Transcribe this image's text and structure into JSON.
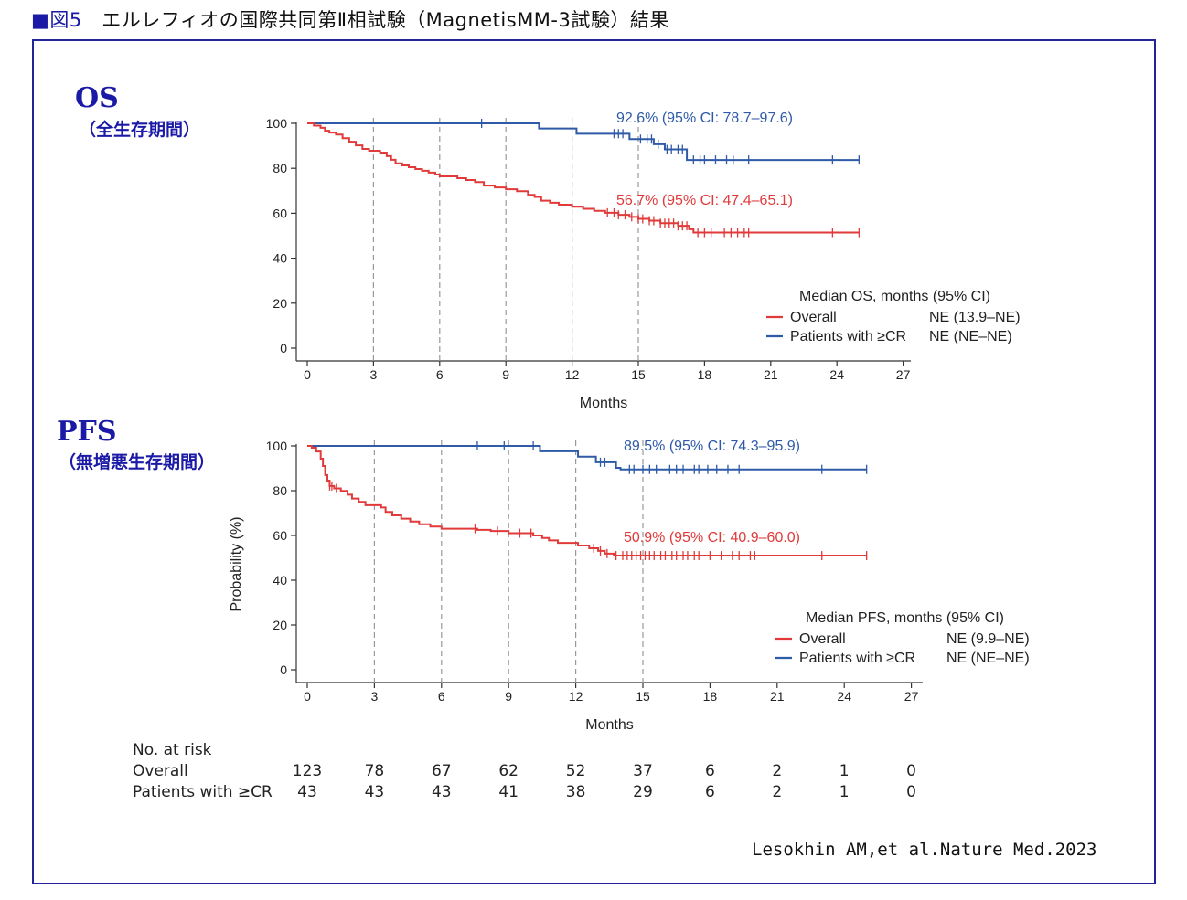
{
  "figure": {
    "square": "■",
    "label": "図5",
    "title": "エルレフィオの国際共同第Ⅱ相試験（MagnetisMM-3試験）結果",
    "citation": "Lesokhin AM,et al.Nature Med.2023",
    "border_color": "#23239a",
    "heading_color": "#1a1aa6"
  },
  "sections": {
    "os": {
      "title": "OS",
      "subtitle": "（全生存期間）"
    },
    "pfs": {
      "title": "PFS",
      "subtitle": "（無増悪生存期間）"
    }
  },
  "chart_data": [
    {
      "id": "os",
      "type": "line",
      "xlabel": "Months",
      "ylabel": "",
      "xlim": [
        0,
        27
      ],
      "ylim": [
        0,
        100
      ],
      "xticks": [
        0,
        3,
        6,
        9,
        12,
        15,
        18,
        21,
        24,
        27
      ],
      "yticks": [
        0,
        20,
        40,
        60,
        80,
        100
      ],
      "dashed_vlines": [
        3,
        6,
        9,
        12,
        15
      ],
      "legend": {
        "title": "Median OS, months (95% CI)",
        "placement": "lower-right",
        "entries": [
          {
            "name": "Overall",
            "value": "NE (13.9–NE)",
            "color": "#e03a3a"
          },
          {
            "name": "Patients with ≥CR",
            "value": "NE (NE–NE)",
            "color": "#2f5aa8"
          }
        ]
      },
      "series": [
        {
          "name": "Patients with ≥CR",
          "color": "#2f5aa8",
          "annotation": "92.6% (95% CI: 78.7–97.6)",
          "steps": [
            [
              0,
              100
            ],
            [
              10.5,
              97.7
            ],
            [
              12.2,
              95.4
            ],
            [
              14.6,
              93.0
            ],
            [
              15.7,
              90.7
            ],
            [
              16.2,
              88.4
            ],
            [
              17.2,
              83.7
            ],
            [
              25,
              83.7
            ]
          ],
          "censor": [
            7.9,
            13.9,
            14.1,
            14.3,
            15.1,
            15.4,
            15.6,
            15.9,
            16.3,
            16.5,
            16.8,
            17.0,
            17.5,
            17.8,
            18.0,
            18.5,
            19.0,
            19.3,
            20.0,
            23.8,
            25.0
          ]
        },
        {
          "name": "Overall",
          "color": "#e03a3a",
          "annotation": "56.7% (95% CI: 47.4–65.1)",
          "steps": [
            [
              0,
              100
            ],
            [
              0.3,
              99
            ],
            [
              0.6,
              98
            ],
            [
              0.8,
              96.7
            ],
            [
              1.0,
              95.9
            ],
            [
              1.3,
              95.0
            ],
            [
              1.6,
              93.4
            ],
            [
              1.9,
              91.8
            ],
            [
              2.2,
              90.2
            ],
            [
              2.5,
              88.6
            ],
            [
              2.8,
              87.8
            ],
            [
              3.3,
              87.0
            ],
            [
              3.6,
              85.4
            ],
            [
              3.8,
              83.8
            ],
            [
              4.0,
              82.2
            ],
            [
              4.3,
              81.3
            ],
            [
              4.6,
              80.5
            ],
            [
              4.9,
              79.7
            ],
            [
              5.2,
              78.9
            ],
            [
              5.5,
              78.1
            ],
            [
              5.8,
              77.3
            ],
            [
              6.0,
              76.4
            ],
            [
              6.8,
              75.6
            ],
            [
              7.2,
              74.8
            ],
            [
              7.6,
              73.9
            ],
            [
              8.0,
              72.3
            ],
            [
              8.5,
              71.5
            ],
            [
              9.0,
              70.7
            ],
            [
              9.5,
              69.8
            ],
            [
              10.0,
              68.2
            ],
            [
              10.3,
              67.3
            ],
            [
              10.6,
              65.6
            ],
            [
              11.0,
              64.7
            ],
            [
              11.4,
              63.8
            ],
            [
              12.0,
              62.9
            ],
            [
              12.5,
              62.0
            ],
            [
              13.0,
              61.1
            ],
            [
              13.5,
              60.2
            ],
            [
              14.1,
              59.3
            ],
            [
              14.6,
              58.4
            ],
            [
              15.0,
              57.5
            ],
            [
              15.5,
              56.7
            ],
            [
              16.0,
              55.6
            ],
            [
              16.8,
              54.4
            ],
            [
              17.3,
              52.9
            ],
            [
              17.5,
              51.4
            ],
            [
              25,
              51.4
            ]
          ],
          "censor": [
            13.6,
            13.9,
            14.1,
            14.4,
            14.7,
            15.0,
            15.2,
            15.5,
            15.7,
            16.0,
            16.2,
            16.4,
            16.6,
            16.8,
            17.0,
            17.2,
            17.7,
            18.0,
            18.3,
            18.9,
            19.2,
            19.5,
            19.8,
            20.0,
            23.8,
            25.0
          ]
        }
      ]
    },
    {
      "id": "pfs",
      "type": "line",
      "xlabel": "Months",
      "ylabel": "Probability (%)",
      "xlim": [
        0,
        27
      ],
      "ylim": [
        0,
        100
      ],
      "xticks": [
        0,
        3,
        6,
        9,
        12,
        15,
        18,
        21,
        24,
        27
      ],
      "yticks": [
        0,
        20,
        40,
        60,
        80,
        100
      ],
      "dashed_vlines": [
        3,
        6,
        9,
        12,
        15
      ],
      "legend": {
        "title": "Median PFS, months (95% CI)",
        "placement": "lower-right",
        "entries": [
          {
            "name": "Overall",
            "value": "NE (9.9–NE)",
            "color": "#e03a3a"
          },
          {
            "name": "Patients with ≥CR",
            "value": "NE (NE–NE)",
            "color": "#2f5aa8"
          }
        ]
      },
      "series": [
        {
          "name": "Patients with ≥CR",
          "color": "#2f5aa8",
          "annotation": "89.5% (95% CI: 74.3–95.9)",
          "steps": [
            [
              0,
              100
            ],
            [
              10.4,
              97.6
            ],
            [
              12.1,
              95.2
            ],
            [
              12.9,
              92.7
            ],
            [
              13.8,
              90.2
            ],
            [
              14.0,
              89.5
            ],
            [
              25,
              89.5
            ]
          ],
          "censor": [
            7.6,
            8.8,
            10.1,
            13.1,
            13.3,
            14.4,
            14.6,
            15.0,
            15.3,
            15.6,
            16.2,
            16.5,
            16.8,
            17.3,
            17.5,
            17.9,
            18.3,
            18.8,
            19.3,
            23.0,
            25.0
          ]
        },
        {
          "name": "Overall",
          "color": "#e03a3a",
          "annotation": "50.9% (95% CI: 40.9–60.0)",
          "steps": [
            [
              0,
              100
            ],
            [
              0.2,
              99.2
            ],
            [
              0.4,
              97.5
            ],
            [
              0.6,
              94.3
            ],
            [
              0.7,
              91.0
            ],
            [
              0.8,
              87.0
            ],
            [
              0.9,
              84.5
            ],
            [
              1.0,
              82.1
            ],
            [
              1.2,
              81.0
            ],
            [
              1.5,
              79.9
            ],
            [
              1.8,
              78.2
            ],
            [
              2.0,
              76.5
            ],
            [
              2.3,
              75.0
            ],
            [
              2.6,
              73.5
            ],
            [
              3.3,
              72.5
            ],
            [
              3.5,
              70.5
            ],
            [
              3.8,
              69.0
            ],
            [
              4.2,
              67.5
            ],
            [
              4.6,
              66.2
            ],
            [
              5.0,
              65.0
            ],
            [
              5.5,
              64.0
            ],
            [
              6.0,
              63.0
            ],
            [
              7.6,
              62.5
            ],
            [
              8.2,
              62.0
            ],
            [
              9.0,
              61.0
            ],
            [
              10.1,
              60.0
            ],
            [
              10.5,
              58.9
            ],
            [
              10.8,
              57.8
            ],
            [
              11.2,
              56.7
            ],
            [
              12.1,
              55.5
            ],
            [
              12.6,
              54.3
            ],
            [
              13.0,
              53.1
            ],
            [
              13.3,
              51.9
            ],
            [
              13.7,
              51.0
            ],
            [
              25,
              51.0
            ]
          ],
          "censor": [
            1.0,
            1.1,
            1.3,
            7.5,
            8.5,
            9.5,
            10.0,
            12.8,
            13.1,
            13.4,
            13.8,
            14.1,
            14.3,
            14.5,
            14.7,
            14.9,
            15.1,
            15.3,
            15.5,
            15.8,
            16.0,
            16.3,
            16.5,
            16.8,
            17.0,
            17.3,
            17.5,
            18.0,
            18.5,
            19.0,
            19.3,
            19.8,
            20.0,
            23.0,
            25.0
          ]
        }
      ]
    }
  ],
  "risk_table": {
    "title": "No. at risk",
    "times": [
      0,
      3,
      6,
      9,
      12,
      15,
      18,
      21,
      24,
      27
    ],
    "rows": [
      {
        "label": "Overall",
        "values": [
          "123",
          "78",
          "67",
          "62",
          "52",
          "37",
          "6",
          "2",
          "1",
          "0"
        ]
      },
      {
        "label": "Patients with ≥CR",
        "values": [
          "43",
          "43",
          "43",
          "41",
          "38",
          "29",
          "6",
          "2",
          "1",
          "0"
        ]
      }
    ]
  }
}
